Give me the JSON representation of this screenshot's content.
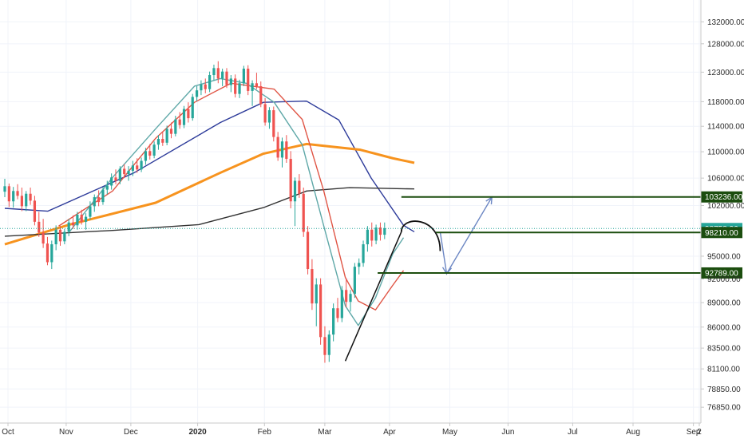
{
  "chart_data": {
    "type": "candlestick",
    "y_axis": {
      "scale": "log",
      "side": "right",
      "range": [
        75500,
        135500
      ],
      "ticks": [
        "132000.00",
        "128000.00",
        "123000.00",
        "118000.00",
        "114000.00",
        "110000.00",
        "106000.00",
        "102000.00",
        "95000.00",
        "92000.00",
        "89000.00",
        "86000.00",
        "83500.00",
        "81100.00",
        "78850.00",
        "76850.00"
      ]
    },
    "x_axis": {
      "ticks": [
        "Oct",
        "Nov",
        "Dec",
        "2020",
        "Feb",
        "Mar",
        "Apr",
        "May",
        "Jun",
        "Jul",
        "Aug",
        "Sep",
        "2"
      ]
    },
    "grid": true,
    "last_price": {
      "label": "98758.96",
      "value": 98758.96,
      "color": "#26a69a"
    },
    "levels": [
      {
        "label": "103236.00",
        "value": 103236,
        "color": "#1b4d0e"
      },
      {
        "label": "98210.00",
        "value": 98210,
        "color": "#1b4d0e"
      },
      {
        "label": "92789.00",
        "value": 92789,
        "color": "#1b4d0e"
      }
    ],
    "colors": {
      "up": "#26a69a",
      "down": "#ef5350",
      "ma_fast": "#5fa8a8",
      "ma_red": "#e05545",
      "ma_blue": "#2d3b9a",
      "ma_orange": "#f7931e",
      "ma_black": "#333333",
      "projection": "#6b86c3",
      "drawing": "#111111"
    },
    "candles": [
      [
        104000,
        105900,
        103200,
        104800
      ],
      [
        104800,
        105200,
        101800,
        102600
      ],
      [
        102600,
        104700,
        101700,
        104100
      ],
      [
        104100,
        105100,
        102900,
        103400
      ],
      [
        103400,
        104600,
        101200,
        101900
      ],
      [
        101900,
        104100,
        101200,
        103700
      ],
      [
        103700,
        104600,
        102100,
        102700
      ],
      [
        102700,
        103400,
        99200,
        99700
      ],
      [
        99700,
        101100,
        97600,
        98200
      ],
      [
        98200,
        100100,
        96100,
        96700
      ],
      [
        96700,
        97600,
        93800,
        94200
      ],
      [
        94200,
        97100,
        93300,
        96600
      ],
      [
        96600,
        99200,
        95800,
        98600
      ],
      [
        98600,
        99100,
        96400,
        97000
      ],
      [
        97000,
        98700,
        96600,
        98300
      ],
      [
        98300,
        100100,
        97700,
        99600
      ],
      [
        99600,
        100600,
        98700,
        99200
      ],
      [
        99200,
        101100,
        98600,
        100700
      ],
      [
        100700,
        101400,
        99300,
        99700
      ],
      [
        99700,
        100900,
        98600,
        100400
      ],
      [
        100400,
        102600,
        100000,
        101900
      ],
      [
        101900,
        103600,
        101100,
        103200
      ],
      [
        103200,
        104200,
        101900,
        102500
      ],
      [
        102500,
        104700,
        102100,
        104300
      ],
      [
        104300,
        105600,
        103600,
        104900
      ],
      [
        104900,
        106700,
        104300,
        106100
      ],
      [
        106100,
        107300,
        105100,
        105600
      ],
      [
        105600,
        107800,
        105100,
        107400
      ],
      [
        107400,
        108100,
        106000,
        106600
      ],
      [
        106600,
        107800,
        105600,
        107100
      ],
      [
        107100,
        108600,
        106300,
        107900
      ],
      [
        107900,
        109000,
        106800,
        107300
      ],
      [
        107300,
        109100,
        106900,
        108600
      ],
      [
        108600,
        110600,
        108000,
        110100
      ],
      [
        110100,
        111200,
        108800,
        109400
      ],
      [
        109400,
        111600,
        109000,
        111100
      ],
      [
        111100,
        112600,
        110300,
        112000
      ],
      [
        112000,
        113100,
        110900,
        111400
      ],
      [
        111400,
        114100,
        111000,
        113600
      ],
      [
        113600,
        114600,
        112100,
        112800
      ],
      [
        112800,
        115700,
        112400,
        115100
      ],
      [
        115100,
        116300,
        113600,
        114200
      ],
      [
        114200,
        117300,
        113700,
        116800
      ],
      [
        116800,
        117900,
        114600,
        115300
      ],
      [
        115300,
        119300,
        114900,
        118800
      ],
      [
        118800,
        120600,
        118100,
        119900
      ],
      [
        119900,
        121600,
        119100,
        120900
      ],
      [
        120900,
        121900,
        119400,
        120100
      ],
      [
        120100,
        123100,
        119600,
        122500
      ],
      [
        122500,
        124300,
        121600,
        123700
      ],
      [
        123700,
        124900,
        121100,
        121900
      ],
      [
        121900,
        123600,
        120600,
        123100
      ],
      [
        123100,
        123700,
        120300,
        120800
      ],
      [
        120800,
        122500,
        119600,
        121900
      ],
      [
        121900,
        122600,
        118700,
        119300
      ],
      [
        119300,
        121700,
        118600,
        121100
      ],
      [
        121100,
        124100,
        120600,
        123600
      ],
      [
        123600,
        124200,
        119100,
        119800
      ],
      [
        119800,
        121600,
        117300,
        121100
      ],
      [
        121100,
        122900,
        120100,
        120600
      ],
      [
        120600,
        121400,
        117100,
        117600
      ],
      [
        117600,
        118600,
        114100,
        114600
      ],
      [
        114600,
        117100,
        113600,
        116600
      ],
      [
        116600,
        117200,
        111600,
        112300
      ],
      [
        112300,
        113100,
        108600,
        109100
      ],
      [
        109100,
        112200,
        107600,
        111600
      ],
      [
        111600,
        112600,
        108300,
        108900
      ],
      [
        108900,
        110100,
        101600,
        102600
      ],
      [
        102600,
        106100,
        99100,
        105600
      ],
      [
        105600,
        106600,
        103100,
        103700
      ],
      [
        103700,
        104600,
        97600,
        98300
      ],
      [
        98300,
        99100,
        92600,
        93300
      ],
      [
        93300,
        94600,
        88100,
        88900
      ],
      [
        88900,
        92100,
        86100,
        91300
      ],
      [
        91300,
        92100,
        83900,
        84800
      ],
      [
        84800,
        86100,
        81800,
        82700
      ],
      [
        82700,
        85600,
        81900,
        85100
      ],
      [
        85100,
        88900,
        84300,
        88300
      ],
      [
        88300,
        89600,
        86600,
        87100
      ],
      [
        87100,
        91100,
        86600,
        90600
      ],
      [
        90600,
        92100,
        88400,
        89100
      ],
      [
        89100,
        90600,
        87900,
        90100
      ],
      [
        90100,
        94100,
        89600,
        93600
      ],
      [
        93600,
        94700,
        92600,
        94100
      ],
      [
        94100,
        97100,
        93600,
        96600
      ],
      [
        96600,
        99100,
        95600,
        98600
      ],
      [
        98600,
        99600,
        96300,
        97100
      ],
      [
        97100,
        99300,
        96600,
        98900
      ],
      [
        98900,
        99600,
        97100,
        97900
      ],
      [
        97900,
        99600,
        97300,
        98800
      ]
    ],
    "ma_series": [
      {
        "key": "ma_blue",
        "values": [
          [
            0,
            101600
          ],
          [
            20,
            101200
          ],
          [
            60,
            106800
          ],
          [
            100,
            114600
          ],
          [
            120,
            117900
          ],
          [
            140,
            118100
          ],
          [
            155,
            115000
          ],
          [
            170,
            106000
          ],
          [
            185,
            99200
          ],
          [
            190,
            98300
          ]
        ]
      },
      {
        "key": "ma_orange",
        "values": [
          [
            0,
            96600
          ],
          [
            30,
            99300
          ],
          [
            70,
            102400
          ],
          [
            100,
            106800
          ],
          [
            120,
            109700
          ],
          [
            140,
            111200
          ],
          [
            165,
            110300
          ],
          [
            180,
            109000
          ],
          [
            190,
            108300
          ]
        ]
      },
      {
        "key": "ma_black",
        "values": [
          [
            0,
            97700
          ],
          [
            50,
            98500
          ],
          [
            90,
            99300
          ],
          [
            120,
            101700
          ],
          [
            140,
            104100
          ],
          [
            160,
            104600
          ],
          [
            190,
            104400
          ]
        ]
      },
      {
        "key": "ma_red",
        "values": [
          [
            25,
            99100
          ],
          [
            50,
            104100
          ],
          [
            70,
            112100
          ],
          [
            88,
            117900
          ],
          [
            105,
            121100
          ],
          [
            125,
            120100
          ],
          [
            138,
            115100
          ],
          [
            148,
            104100
          ],
          [
            158,
            92200
          ],
          [
            164,
            89200
          ],
          [
            172,
            88100
          ],
          [
            180,
            91200
          ],
          [
            185,
            93100
          ]
        ]
      },
      {
        "key": "ma_fast",
        "values": [
          [
            30,
            98300
          ],
          [
            50,
            106100
          ],
          [
            70,
            113600
          ],
          [
            88,
            120600
          ],
          [
            100,
            121900
          ],
          [
            112,
            121100
          ],
          [
            125,
            117900
          ],
          [
            138,
            111100
          ],
          [
            148,
            99100
          ],
          [
            158,
            88600
          ],
          [
            164,
            86200
          ],
          [
            172,
            89600
          ],
          [
            180,
            95300
          ],
          [
            185,
            97500
          ]
        ]
      }
    ],
    "drawings": [
      {
        "key": "drawing",
        "kind": "line",
        "from": [
          158,
          82000
        ],
        "to": [
          184,
          98300
        ]
      },
      {
        "key": "drawing",
        "kind": "arc",
        "from": [
          184,
          98300
        ],
        "to": [
          202,
          98300
        ],
        "peak": 99700
      },
      {
        "key": "projection",
        "kind": "polyline",
        "values": [
          [
            202,
            98300
          ],
          [
            205,
            92700
          ],
          [
            226,
            103200
          ]
        ]
      }
    ]
  }
}
